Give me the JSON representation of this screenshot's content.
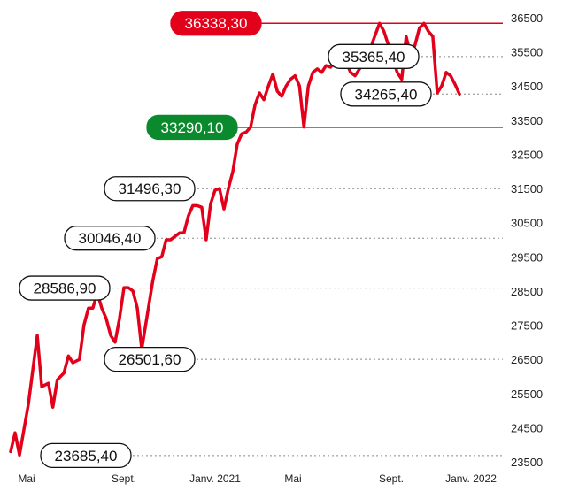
{
  "chart_data": {
    "type": "line",
    "x_axis_labels": [
      "Mai",
      "Sept.",
      "Janv. 2021",
      "Mai",
      "Sept.",
      "Janv. 2022"
    ],
    "y_ticks": [
      23500,
      24500,
      25500,
      26500,
      27500,
      28500,
      29500,
      30500,
      31500,
      32500,
      33500,
      34500,
      35500,
      36500
    ],
    "y_tick_labels": [
      "23500",
      "24500",
      "25500",
      "26500",
      "27500",
      "28500",
      "29500",
      "30500",
      "31500",
      "32500",
      "33500",
      "34500",
      "35500",
      "36500"
    ],
    "ylim": [
      23500,
      36500
    ],
    "grid": "dotted reference lines at annotated values",
    "series": [
      {
        "color": "#e3001b",
        "points": [
          [
            0.0,
            23800
          ],
          [
            0.1,
            24350
          ],
          [
            0.2,
            23700
          ],
          [
            0.4,
            25200
          ],
          [
            0.55,
            26700
          ],
          [
            0.6,
            27200
          ],
          [
            0.7,
            25700
          ],
          [
            0.85,
            25800
          ],
          [
            0.95,
            25100
          ],
          [
            1.05,
            25900
          ],
          [
            1.2,
            26100
          ],
          [
            1.3,
            26600
          ],
          [
            1.4,
            26400
          ],
          [
            1.55,
            26500
          ],
          [
            1.65,
            27500
          ],
          [
            1.75,
            28000
          ],
          [
            1.85,
            28000
          ],
          [
            1.95,
            28450
          ],
          [
            2.05,
            28000
          ],
          [
            2.15,
            27700
          ],
          [
            2.25,
            27200
          ],
          [
            2.35,
            27000
          ],
          [
            2.45,
            27700
          ],
          [
            2.55,
            28600
          ],
          [
            2.65,
            28600
          ],
          [
            2.75,
            28500
          ],
          [
            2.85,
            28000
          ],
          [
            2.95,
            26800
          ],
          [
            3.05,
            27600
          ],
          [
            3.2,
            28800
          ],
          [
            3.3,
            29450
          ],
          [
            3.4,
            29500
          ],
          [
            3.5,
            30000
          ],
          [
            3.6,
            30000
          ],
          [
            3.7,
            30100
          ],
          [
            3.8,
            30200
          ],
          [
            3.9,
            30200
          ],
          [
            4.0,
            30700
          ],
          [
            4.1,
            31000
          ],
          [
            4.2,
            31000
          ],
          [
            4.3,
            30950
          ],
          [
            4.4,
            30000
          ],
          [
            4.5,
            31050
          ],
          [
            4.6,
            31450
          ],
          [
            4.7,
            31500
          ],
          [
            4.8,
            30900
          ],
          [
            4.9,
            31500
          ],
          [
            5.0,
            32000
          ],
          [
            5.1,
            32800
          ],
          [
            5.2,
            33100
          ],
          [
            5.3,
            33150
          ],
          [
            5.4,
            33300
          ],
          [
            5.5,
            33950
          ],
          [
            5.6,
            34300
          ],
          [
            5.7,
            34100
          ],
          [
            5.8,
            34500
          ],
          [
            5.9,
            34850
          ],
          [
            6.0,
            34350
          ],
          [
            6.1,
            34200
          ],
          [
            6.2,
            34500
          ],
          [
            6.3,
            34700
          ],
          [
            6.4,
            34800
          ],
          [
            6.5,
            34500
          ],
          [
            6.6,
            33300
          ],
          [
            6.7,
            34500
          ],
          [
            6.8,
            34900
          ],
          [
            6.9,
            35000
          ],
          [
            7.0,
            34900
          ],
          [
            7.1,
            35100
          ],
          [
            7.2,
            35050
          ],
          [
            7.3,
            35250
          ],
          [
            7.4,
            35365
          ],
          [
            7.55,
            35200
          ],
          [
            7.65,
            34900
          ],
          [
            7.75,
            34800
          ],
          [
            7.85,
            35000
          ],
          [
            7.95,
            35200
          ],
          [
            8.05,
            35300
          ],
          [
            8.15,
            35800
          ],
          [
            8.3,
            36338
          ],
          [
            8.4,
            36100
          ],
          [
            8.5,
            35700
          ],
          [
            8.6,
            35300
          ],
          [
            8.7,
            34900
          ],
          [
            8.8,
            34700
          ],
          [
            8.9,
            35950
          ],
          [
            9.0,
            35400
          ],
          [
            9.1,
            35700
          ],
          [
            9.2,
            36200
          ],
          [
            9.3,
            36338
          ],
          [
            9.4,
            36100
          ],
          [
            9.5,
            35950
          ],
          [
            9.6,
            34300
          ],
          [
            9.7,
            34500
          ],
          [
            9.8,
            34900
          ],
          [
            9.9,
            34800
          ],
          [
            10.0,
            34550
          ],
          [
            10.1,
            34265
          ]
        ]
      }
    ],
    "annotations": [
      {
        "label": "36338,30",
        "value": 36338.3,
        "style": "red"
      },
      {
        "label": "35365,40",
        "value": 35365.4,
        "style": "outline"
      },
      {
        "label": "34265,40",
        "value": 34265.4,
        "style": "outline"
      },
      {
        "label": "33290,10",
        "value": 33290.1,
        "style": "green"
      },
      {
        "label": "31496,30",
        "value": 31496.3,
        "style": "outline"
      },
      {
        "label": "30046,40",
        "value": 30046.4,
        "style": "outline"
      },
      {
        "label": "28586,90",
        "value": 28586.9,
        "style": "outline"
      },
      {
        "label": "26501,60",
        "value": 26501.6,
        "style": "outline"
      },
      {
        "label": "23685,40",
        "value": 23685.4,
        "style": "outline"
      }
    ],
    "colors": {
      "line": "#e3001b",
      "high": "#e3001b",
      "support": "#0b8a2d"
    }
  }
}
